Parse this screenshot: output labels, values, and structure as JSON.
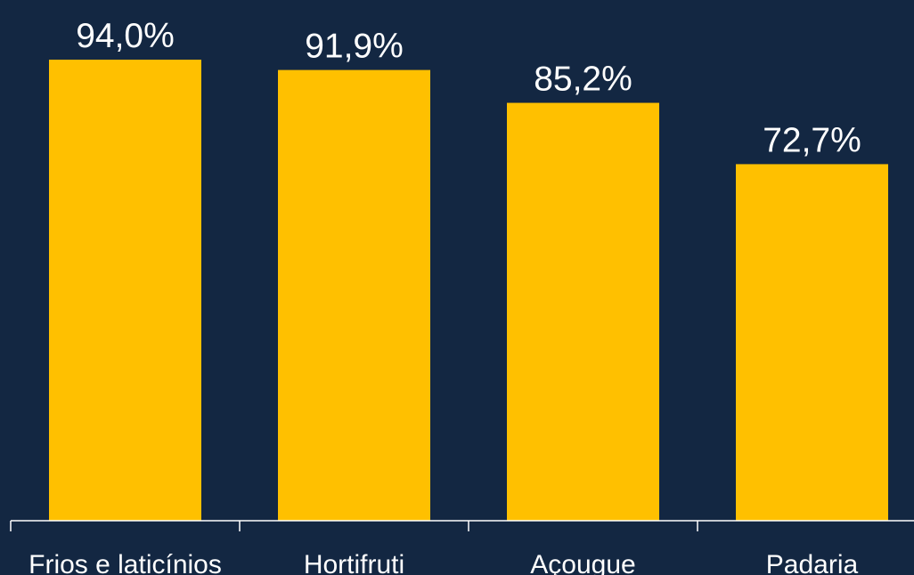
{
  "colors": {
    "background": "#132742",
    "bar": "#FFC000",
    "axis": "#FFFFFF",
    "text": "#FFFFFF"
  },
  "chart_data": {
    "type": "bar",
    "categories": [
      "Frios e laticínios",
      "Hortifruti",
      "Açougue",
      "Padaria"
    ],
    "values": [
      94.0,
      91.9,
      85.2,
      72.7
    ],
    "value_labels": [
      "94,0%",
      "91,9%",
      "85,2%",
      "72,7%"
    ],
    "title": "",
    "xlabel": "",
    "ylabel": "",
    "ylim": [
      0,
      100
    ],
    "grid": false,
    "legend": "none"
  }
}
